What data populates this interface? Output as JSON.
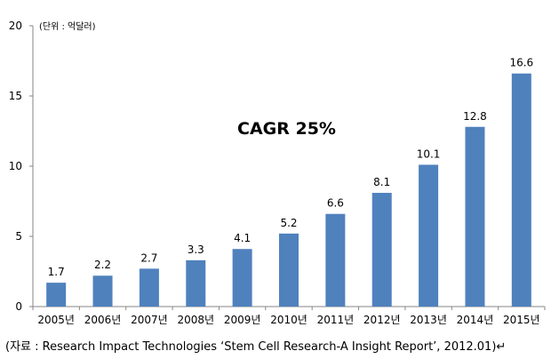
{
  "chart_data": {
    "type": "bar",
    "categories": [
      "2005년",
      "2006년",
      "2007년",
      "2008년",
      "2009년",
      "2010년",
      "2011년",
      "2012년",
      "2013년",
      "2014년",
      "2015년"
    ],
    "values": [
      1.7,
      2.2,
      2.7,
      3.3,
      4.1,
      5.2,
      6.6,
      8.1,
      10.1,
      12.8,
      16.6
    ],
    "data_labels": [
      "1.7",
      "2.2",
      "2.7",
      "3.3",
      "4.1",
      "5.2",
      "6.6",
      "8.1",
      "10.1",
      "12.8",
      "16.6"
    ],
    "yticks": [
      "0",
      "5",
      "10",
      "15",
      "20"
    ],
    "ylim": [
      0,
      20
    ],
    "unit_label": "(단위 : 억달러)",
    "annotation": "CAGR 25%",
    "bar_color": "#4F81BD",
    "grid": false,
    "legend": "none"
  },
  "source_note": "(자료 : Research Impact Technologies ‘Stem Cell Research-A Insight Report’, 2012.01)↵"
}
